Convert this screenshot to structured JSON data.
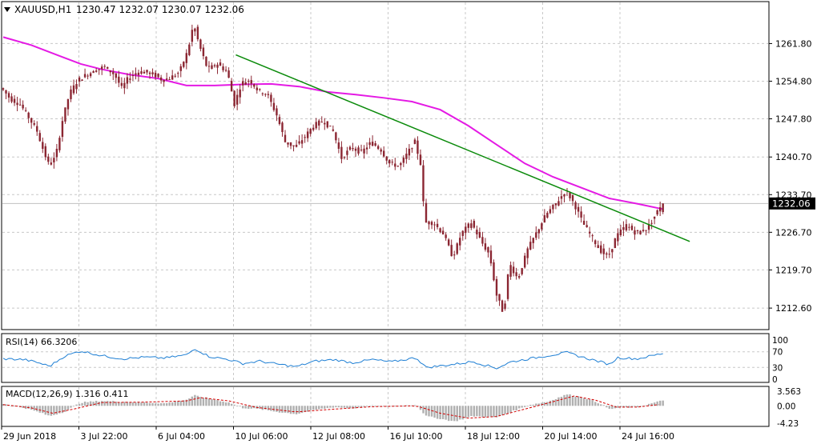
{
  "header": {
    "symbol": "XAUUSD,H1",
    "ohlc": "1230.47 1232.07 1230.07 1232.06"
  },
  "chart_data": [
    {
      "type": "candlestick",
      "title": "XAUUSD,H1",
      "symbol": "XAUUSD",
      "timeframe": "H1",
      "open": 1230.47,
      "high": 1232.07,
      "low": 1230.07,
      "close": 1232.06,
      "current_price": 1232.06,
      "current_price_label": "1232.06",
      "y_ticks": [
        1261.8,
        1254.8,
        1247.8,
        1240.7,
        1233.7,
        1226.7,
        1219.7,
        1212.6
      ],
      "y_tick_labels": [
        "1261.80",
        "1254.80",
        "1247.80",
        "1240.70",
        "1233.70",
        "1226.70",
        "1219.70",
        "1212.60"
      ],
      "ylim": [
        1208.6,
        1269.6
      ],
      "x_labels": [
        "29 Jun 2018",
        "3 Jul 22:00",
        "6 Jul 04:00",
        "10 Jul 06:00",
        "12 Jul 08:00",
        "16 Jul 10:00",
        "18 Jul 12:00",
        "20 Jul 14:00",
        "24 Jul 16:00"
      ],
      "grid": true,
      "price_path": [
        [
          0,
          1253.5
        ],
        [
          0.6,
          1251.5
        ],
        [
          1.3,
          1250.5
        ],
        [
          1.8,
          1248.5
        ],
        [
          2.5,
          1245.5
        ],
        [
          3.0,
          1241.5
        ],
        [
          3.3,
          1239.5
        ],
        [
          3.8,
          1240.5
        ],
        [
          4.3,
          1247.5
        ],
        [
          4.8,
          1252.5
        ],
        [
          5.4,
          1255.0
        ],
        [
          6.0,
          1256.0
        ],
        [
          6.6,
          1256.8
        ],
        [
          7.3,
          1257.5
        ],
        [
          8.0,
          1256.0
        ],
        [
          8.5,
          1253.5
        ],
        [
          9.0,
          1255.5
        ],
        [
          9.6,
          1256.5
        ],
        [
          10.2,
          1256.5
        ],
        [
          10.8,
          1256.0
        ],
        [
          11.4,
          1255.0
        ],
        [
          12.0,
          1255.5
        ],
        [
          12.6,
          1256.5
        ],
        [
          13.2,
          1260.5
        ],
        [
          13.6,
          1265.5
        ],
        [
          14.0,
          1261.5
        ],
        [
          14.6,
          1257.0
        ],
        [
          15.3,
          1258.0
        ],
        [
          16.0,
          1256.5
        ],
        [
          16.5,
          1250.5
        ],
        [
          17.0,
          1254.5
        ],
        [
          17.6,
          1255.0
        ],
        [
          18.2,
          1253.0
        ],
        [
          18.8,
          1252.5
        ],
        [
          19.5,
          1248.5
        ],
        [
          20.1,
          1243.5
        ],
        [
          20.8,
          1242.5
        ],
        [
          21.5,
          1244.5
        ],
        [
          22.1,
          1246.5
        ],
        [
          22.8,
          1247.5
        ],
        [
          23.5,
          1245.5
        ],
        [
          24.1,
          1240.5
        ],
        [
          24.8,
          1242.5
        ],
        [
          25.5,
          1241.5
        ],
        [
          26.2,
          1243.5
        ],
        [
          26.9,
          1242.0
        ],
        [
          27.5,
          1239.5
        ],
        [
          28.2,
          1239.0
        ],
        [
          28.8,
          1241.5
        ],
        [
          29.3,
          1243.5
        ],
        [
          29.7,
          1239.5
        ],
        [
          30.0,
          1228.5
        ],
        [
          30.6,
          1228.5
        ],
        [
          31.3,
          1226.5
        ],
        [
          32.0,
          1222.0
        ],
        [
          32.6,
          1226.5
        ],
        [
          33.3,
          1228.5
        ],
        [
          34.0,
          1225.0
        ],
        [
          34.6,
          1222.5
        ],
        [
          35.1,
          1215.0
        ],
        [
          35.6,
          1211.5
        ],
        [
          36.0,
          1221.0
        ],
        [
          36.6,
          1218.0
        ],
        [
          37.3,
          1223.5
        ],
        [
          38.0,
          1227.0
        ],
        [
          38.6,
          1230.0
        ],
        [
          39.3,
          1232.0
        ],
        [
          40.0,
          1234.5
        ],
        [
          40.6,
          1232.0
        ],
        [
          41.2,
          1228.5
        ],
        [
          41.8,
          1226.0
        ],
        [
          42.4,
          1223.5
        ],
        [
          43.0,
          1222.0
        ],
        [
          43.6,
          1226.0
        ],
        [
          44.3,
          1228.0
        ],
        [
          45.0,
          1226.5
        ],
        [
          45.8,
          1227.5
        ],
        [
          46.4,
          1230.07
        ],
        [
          46.8,
          1232.06
        ]
      ],
      "trendline": [
        [
          16.5,
          1259.7
        ],
        [
          48.7,
          1225.0
        ]
      ],
      "sma_path": [
        [
          0,
          1263.0
        ],
        [
          2.0,
          1261.5
        ],
        [
          4.0,
          1259.5
        ],
        [
          5.5,
          1258.0
        ],
        [
          7.0,
          1257.0
        ],
        [
          9.0,
          1256.0
        ],
        [
          11.0,
          1255.3
        ],
        [
          13.0,
          1254.0
        ],
        [
          15.0,
          1254.0
        ],
        [
          17.0,
          1254.2
        ],
        [
          19.0,
          1254.3
        ],
        [
          21.0,
          1253.8
        ],
        [
          23.0,
          1252.8
        ],
        [
          25.0,
          1252.3
        ],
        [
          27.0,
          1251.7
        ],
        [
          29.0,
          1251.0
        ],
        [
          31.0,
          1249.5
        ],
        [
          33.0,
          1246.5
        ],
        [
          35.0,
          1243.0
        ],
        [
          37.0,
          1239.5
        ],
        [
          39.0,
          1237.0
        ],
        [
          41.0,
          1235.0
        ],
        [
          43.0,
          1233.0
        ],
        [
          45.0,
          1232.0
        ],
        [
          46.8,
          1231.0
        ]
      ]
    },
    {
      "type": "line",
      "title": "RSI(14) 66.3206",
      "indicator": "RSI(14)",
      "value": 66.3206,
      "y_tick_labels": [
        "100",
        "70",
        "30",
        "0"
      ],
      "ylim": [
        0,
        100
      ],
      "levels": [
        30,
        70
      ],
      "values": [
        [
          0,
          52
        ],
        [
          1.5,
          50
        ],
        [
          2.5,
          42
        ],
        [
          3.3,
          33
        ],
        [
          4.3,
          58
        ],
        [
          5.5,
          72
        ],
        [
          7.0,
          60
        ],
        [
          8.5,
          52
        ],
        [
          10.0,
          56
        ],
        [
          11.5,
          54
        ],
        [
          13.0,
          62
        ],
        [
          13.6,
          78
        ],
        [
          14.6,
          58
        ],
        [
          16.0,
          50
        ],
        [
          17.0,
          40
        ],
        [
          18.2,
          46
        ],
        [
          19.5,
          38
        ],
        [
          20.8,
          32
        ],
        [
          22.1,
          46
        ],
        [
          23.5,
          50
        ],
        [
          24.8,
          42
        ],
        [
          26.2,
          50
        ],
        [
          27.5,
          44
        ],
        [
          29.3,
          55
        ],
        [
          30.0,
          30
        ],
        [
          32.0,
          38
        ],
        [
          33.3,
          45
        ],
        [
          35.0,
          28
        ],
        [
          36.0,
          44
        ],
        [
          37.3,
          52
        ],
        [
          38.6,
          60
        ],
        [
          40.0,
          68
        ],
        [
          41.2,
          55
        ],
        [
          42.4,
          44
        ],
        [
          43.0,
          38
        ],
        [
          43.6,
          55
        ],
        [
          45.0,
          52
        ],
        [
          46.8,
          66
        ]
      ]
    },
    {
      "type": "bar",
      "title": "MACD(12,26,9) 1.316 0.411",
      "indicator": "MACD(12,26,9)",
      "macd": 1.316,
      "signal": 0.411,
      "y_tick_labels": [
        "3.563",
        "0.00",
        "-4.23"
      ],
      "ylim": [
        -4.23,
        3.563
      ],
      "histogram": [
        [
          0,
          0.5
        ],
        [
          1.5,
          -0.5
        ],
        [
          2.5,
          -1.5
        ],
        [
          3.3,
          -2.5
        ],
        [
          4.3,
          -1.5
        ],
        [
          5.5,
          0.8
        ],
        [
          7.0,
          1.2
        ],
        [
          8.5,
          1.0
        ],
        [
          10.0,
          0.8
        ],
        [
          11.5,
          0.6
        ],
        [
          13.0,
          1.5
        ],
        [
          13.6,
          2.5
        ],
        [
          14.6,
          1.8
        ],
        [
          16.0,
          0.8
        ],
        [
          17.0,
          -0.5
        ],
        [
          18.2,
          -0.8
        ],
        [
          19.5,
          -1.5
        ],
        [
          20.8,
          -2.0
        ],
        [
          22.1,
          -1.0
        ],
        [
          23.5,
          -0.3
        ],
        [
          24.8,
          -0.6
        ],
        [
          26.2,
          0.0
        ],
        [
          27.5,
          -0.2
        ],
        [
          29.3,
          0.3
        ],
        [
          30.0,
          -2.5
        ],
        [
          32.0,
          -3.8
        ],
        [
          33.3,
          -2.5
        ],
        [
          35.0,
          -2.8
        ],
        [
          36.0,
          -1.5
        ],
        [
          37.3,
          0.2
        ],
        [
          38.6,
          1.0
        ],
        [
          40.0,
          2.8
        ],
        [
          41.2,
          2.0
        ],
        [
          42.4,
          0.5
        ],
        [
          43.0,
          -0.8
        ],
        [
          43.6,
          -0.5
        ],
        [
          45.0,
          -0.3
        ],
        [
          46.8,
          1.316
        ]
      ],
      "signal_line": [
        [
          0,
          0.3
        ],
        [
          2.0,
          -0.5
        ],
        [
          3.5,
          -1.8
        ],
        [
          5.0,
          -0.8
        ],
        [
          7.0,
          0.8
        ],
        [
          10.0,
          0.9
        ],
        [
          13.0,
          1.2
        ],
        [
          14.0,
          2.0
        ],
        [
          16.0,
          1.2
        ],
        [
          18.0,
          -0.4
        ],
        [
          20.8,
          -1.5
        ],
        [
          23.5,
          -0.8
        ],
        [
          26.2,
          -0.2
        ],
        [
          29.3,
          0.0
        ],
        [
          31.0,
          -1.8
        ],
        [
          33.0,
          -3.0
        ],
        [
          35.0,
          -2.6
        ],
        [
          37.0,
          -0.8
        ],
        [
          39.0,
          1.0
        ],
        [
          40.5,
          2.4
        ],
        [
          42.0,
          1.4
        ],
        [
          43.5,
          -0.3
        ],
        [
          45.0,
          -0.3
        ],
        [
          46.8,
          0.411
        ]
      ]
    }
  ],
  "colors": {
    "background": "#ffffff",
    "grid": "#c8c8c8",
    "candle": "#8b2632",
    "sma": "#e41ae4",
    "trendline": "#0a8a0a",
    "rsi": "#1e7fd4",
    "macd_hist": "#b0b0b0",
    "macd_signal": "#d20000",
    "price_line": "#c0c0c0",
    "price_label_bg": "#000000",
    "price_label_fg": "#ffffff"
  }
}
